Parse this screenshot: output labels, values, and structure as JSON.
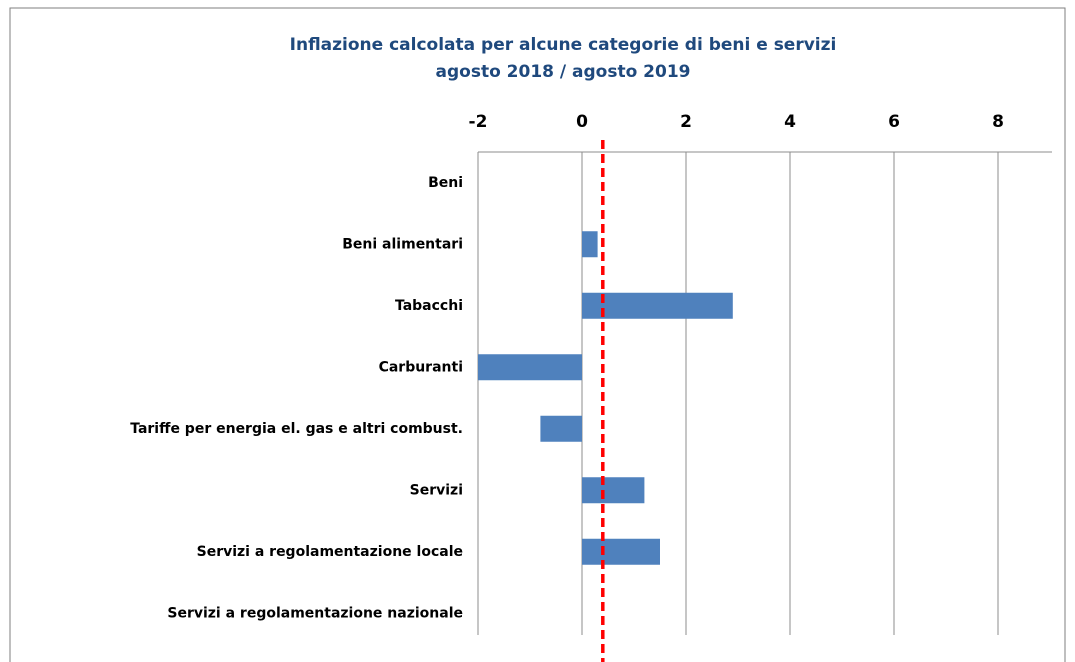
{
  "chart_data": {
    "type": "hbar",
    "title": "Inflazione calcolata per alcune categorie di beni e servizi",
    "subtitle": "agosto 2018 / agosto 2019",
    "categories": [
      "Beni",
      "Beni alimentari",
      "Tabacchi",
      "Carburanti",
      "Tariffe per energia el. gas e altri combust.",
      "Servizi ",
      "Servizi a regolamentazione locale",
      "Servizi a regolamentazione nazionale"
    ],
    "values": [
      0,
      0.3,
      2.9,
      -2.0,
      -0.8,
      1.2,
      1.5,
      0
    ],
    "color": "#4f81bd",
    "xlim": [
      -2,
      9
    ],
    "xticks": [
      -2,
      0,
      2,
      4,
      6,
      8
    ],
    "grid": true,
    "reference_line": {
      "value": 0.4,
      "color": "#ff0000"
    }
  }
}
